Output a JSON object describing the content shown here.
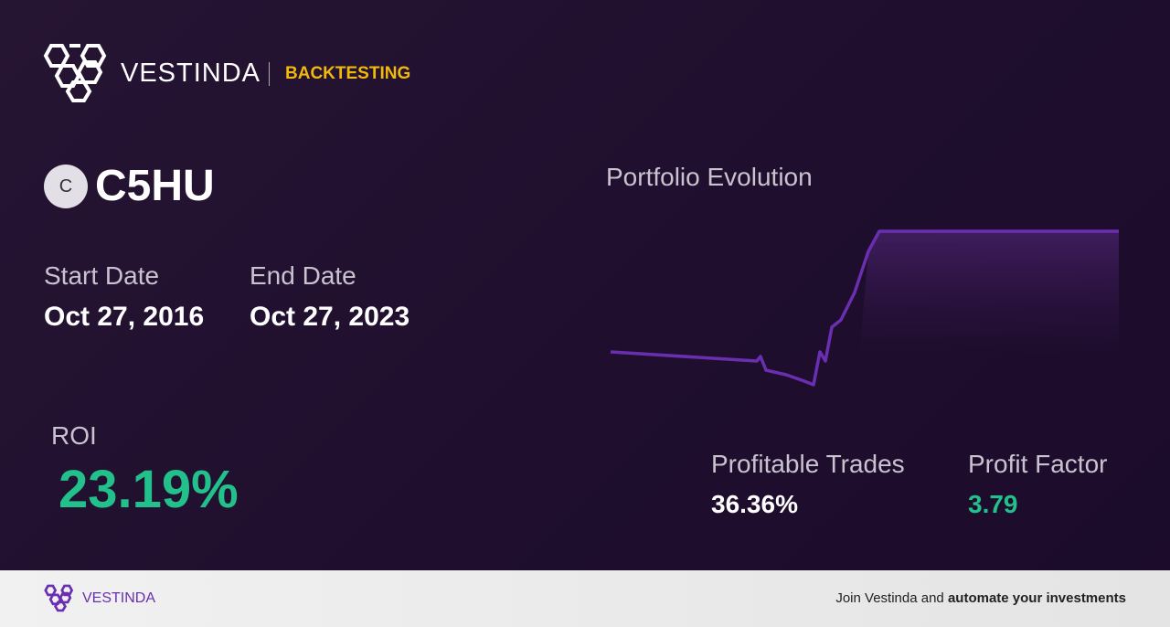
{
  "header": {
    "brand": "VESTINDA",
    "section": "BACKTESTING"
  },
  "asset": {
    "icon": "C",
    "ticker": "C5HU"
  },
  "dates": {
    "start_label": "Start Date",
    "start": "Oct 27, 2016",
    "end_label": "End Date",
    "end": "Oct 27, 2023"
  },
  "roi": {
    "label": "ROI",
    "value": "23.19%"
  },
  "chart": {
    "title": "Portfolio Evolution"
  },
  "stats": {
    "profitable_trades_label": "Profitable Trades",
    "profitable_trades": "36.36%",
    "profit_factor_label": "Profit Factor",
    "profit_factor": "3.79"
  },
  "footer": {
    "brand": "VESTINDA",
    "cta_prefix": "Join Vestinda and",
    "cta_bold": "automate your investments"
  }
}
